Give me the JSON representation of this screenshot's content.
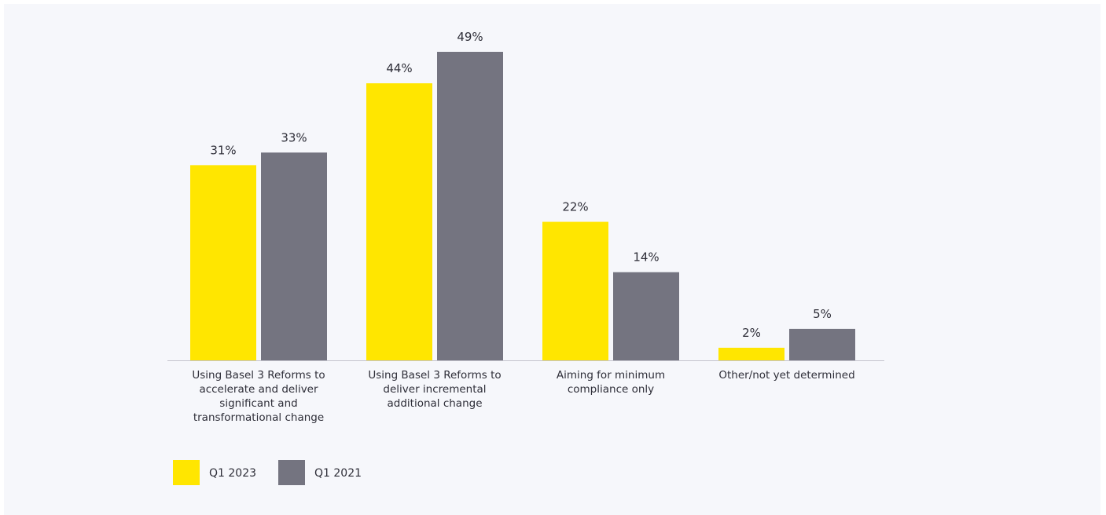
{
  "chart_data": {
    "type": "bar",
    "categories": [
      [
        "Using Basel 3 Reforms to",
        "accelerate and deliver",
        "significant and",
        "transformational change"
      ],
      [
        "Using Basel 3 Reforms to",
        "deliver incremental",
        "additional change"
      ],
      [
        "Aiming for minimum",
        "compliance only"
      ],
      [
        "Other/not yet determined"
      ]
    ],
    "series": [
      {
        "name": "Q1 2023",
        "color": "#ffe600",
        "values": [
          31,
          44,
          22,
          2
        ],
        "labels": [
          "31%",
          "44%",
          "22%",
          "2%"
        ]
      },
      {
        "name": "Q1 2021",
        "color": "#747480",
        "values": [
          33,
          49,
          14,
          5
        ],
        "labels": [
          "33%",
          "49%",
          "14%",
          "5%"
        ]
      }
    ],
    "title": "",
    "xlabel": "",
    "ylabel": "",
    "ylim": [
      0,
      49
    ],
    "grid": false,
    "legend": "bottom-left",
    "axis_color": "#c4c4cd"
  }
}
